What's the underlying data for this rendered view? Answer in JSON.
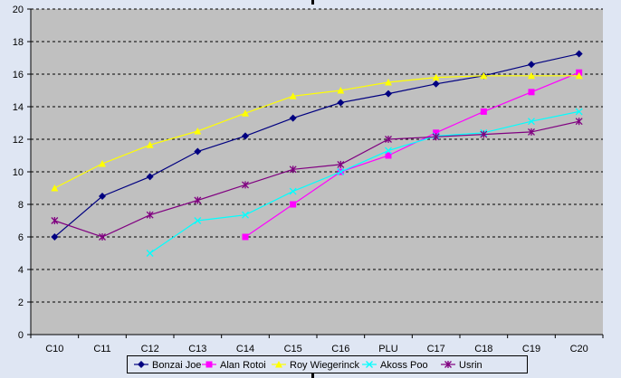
{
  "chart_data": {
    "type": "line",
    "categories": [
      "C10",
      "C11",
      "C12",
      "C13",
      "C14",
      "C15",
      "C16",
      "PLU",
      "C17",
      "C18",
      "C19",
      "C20"
    ],
    "ylim": [
      0,
      20
    ],
    "yticks": [
      "0",
      "2",
      "4",
      "6",
      "8",
      "10",
      "12",
      "14",
      "16",
      "18",
      "20"
    ],
    "grid": true,
    "legend_position": "bottom",
    "plot_background": "#c0c0c0",
    "series": [
      {
        "name": "Bonzai Joe",
        "color": "#000080",
        "marker": "diamond",
        "values": [
          6,
          8.5,
          9.7,
          11.25,
          12.2,
          13.3,
          14.25,
          14.8,
          15.4,
          15.9,
          16.6,
          17.25
        ]
      },
      {
        "name": "Alan Rotoi",
        "color": "#ff00ff",
        "marker": "square",
        "values": [
          null,
          null,
          null,
          null,
          6,
          8,
          10,
          11,
          12.4,
          13.7,
          14.9,
          16.1
        ]
      },
      {
        "name": "Roy Wiegerinck",
        "color": "#ffff00",
        "marker": "triangle",
        "values": [
          9,
          10.5,
          11.65,
          12.5,
          13.6,
          14.65,
          15,
          15.5,
          15.8,
          15.9,
          15.9,
          15.9
        ]
      },
      {
        "name": "Akoss Poo",
        "color": "#00ffff",
        "marker": "x",
        "values": [
          null,
          null,
          5,
          7,
          7.35,
          8.8,
          10,
          11.3,
          12.2,
          12.4,
          13.1,
          13.7
        ]
      },
      {
        "name": "Usrin",
        "color": "#800080",
        "marker": "star",
        "values": [
          7,
          6,
          7.35,
          8.25,
          9.2,
          10.15,
          10.45,
          12,
          12.15,
          12.3,
          12.45,
          13.1
        ]
      }
    ]
  }
}
